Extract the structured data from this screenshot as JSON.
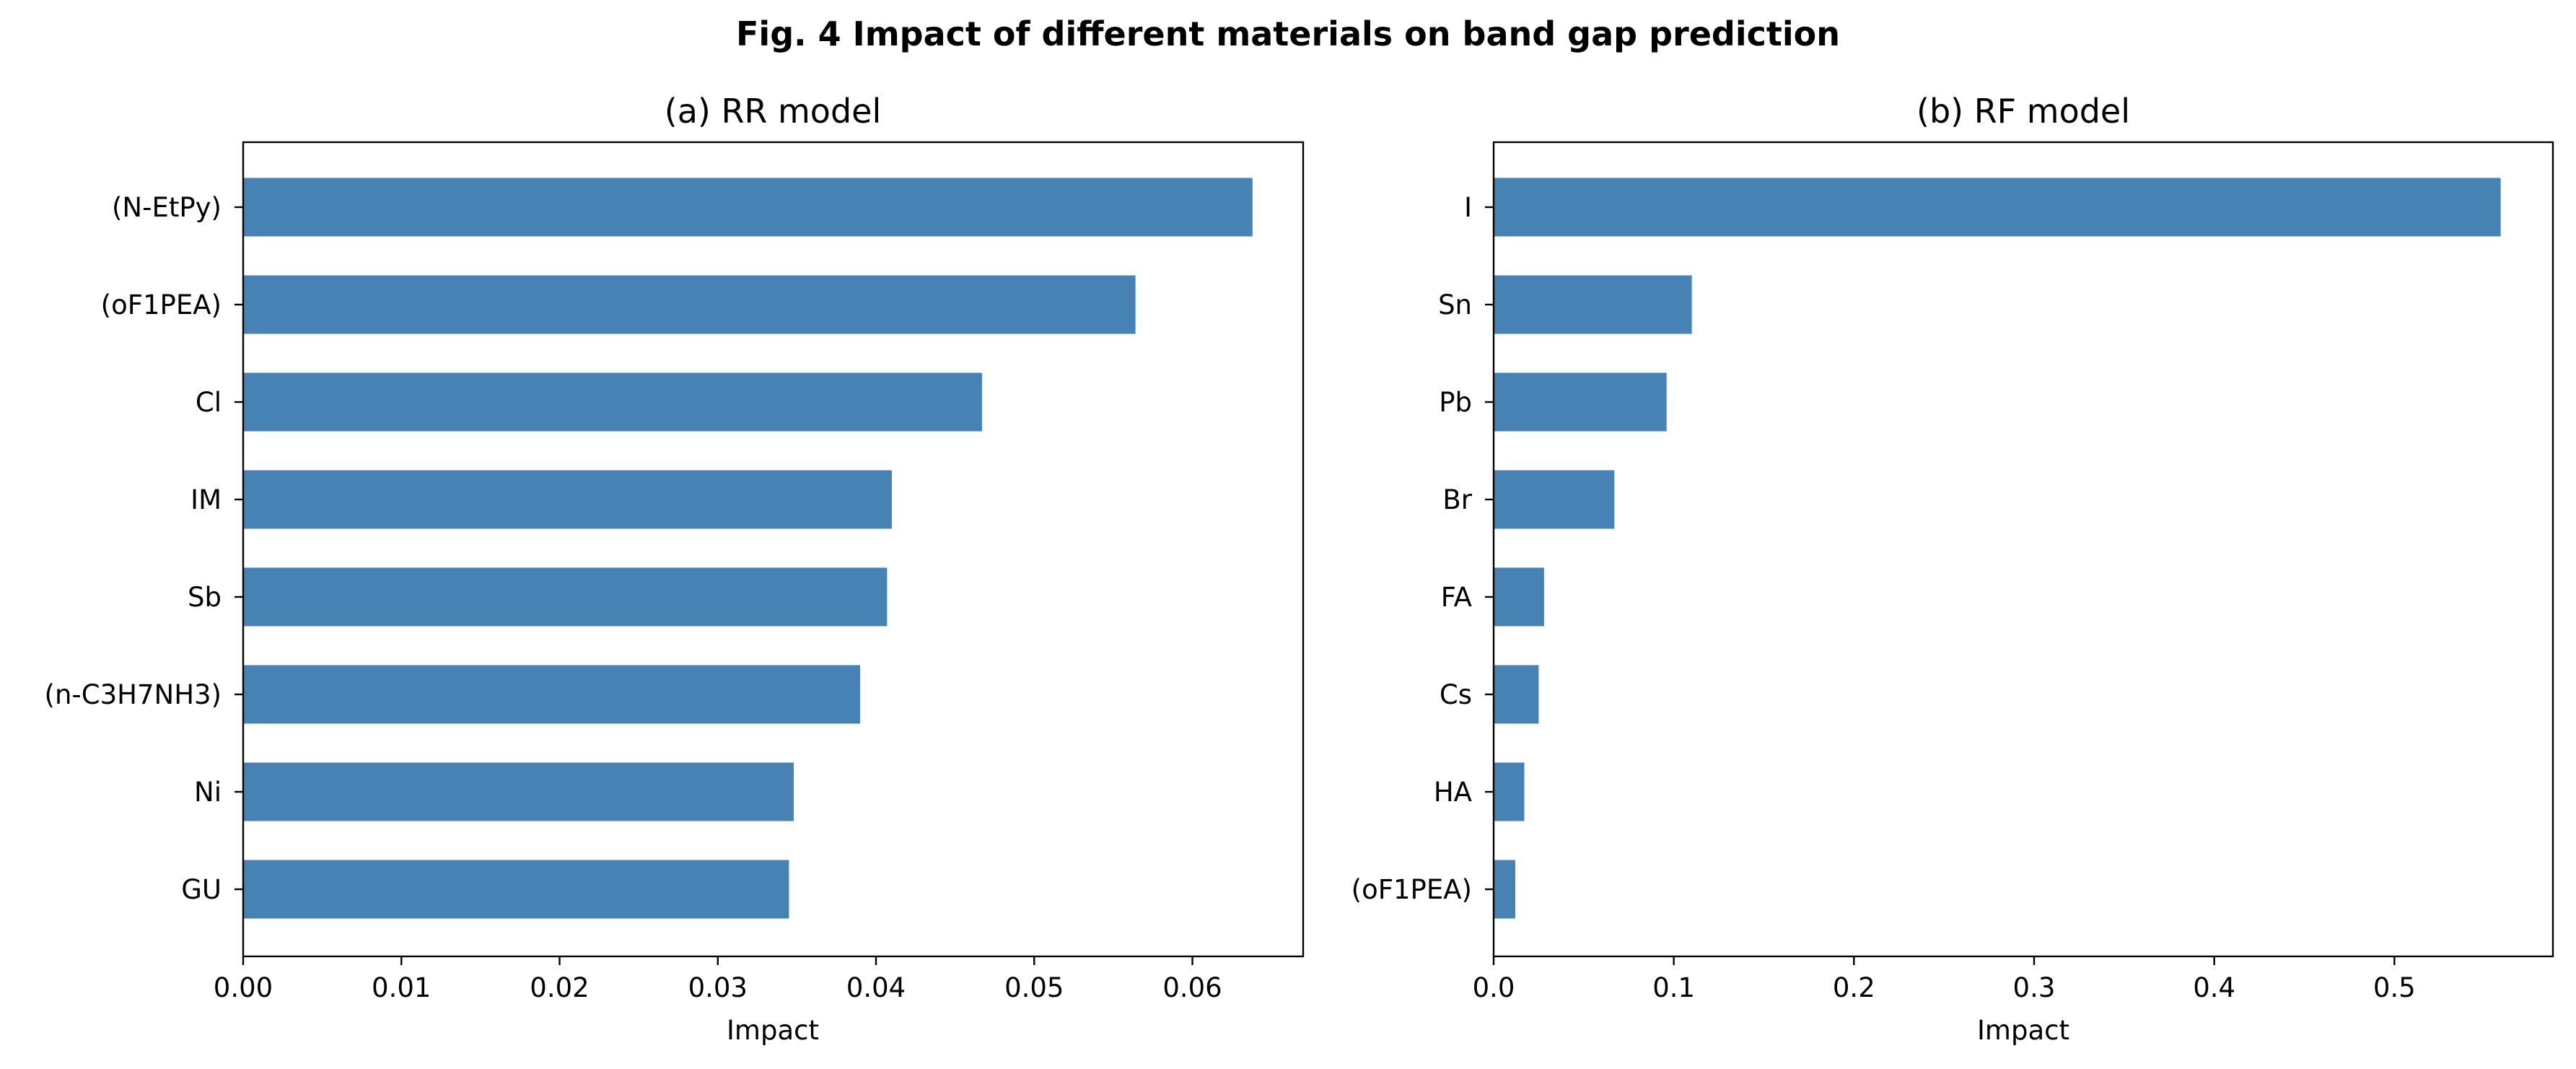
{
  "figure_title": "Fig. 4 Impact of different materials on band gap prediction",
  "colors": {
    "bar": "#4682b4",
    "axis": "#000000",
    "background": "#ffffff"
  },
  "chart_data": [
    {
      "type": "bar",
      "orientation": "horizontal",
      "title": "(a) RR model",
      "xlabel": "Impact",
      "ylabel": "",
      "categories": [
        "(N-EtPy)",
        "(oF1PEA)",
        "Cl",
        "IM",
        "Sb",
        "(n-C3H7NH3)",
        "Ni",
        "GU"
      ],
      "values": [
        0.0638,
        0.0564,
        0.0467,
        0.041,
        0.0407,
        0.039,
        0.0348,
        0.0345
      ],
      "xlim": [
        0,
        0.067
      ],
      "xticks": [
        0,
        0.01,
        0.02,
        0.03,
        0.04,
        0.05,
        0.06
      ],
      "xtick_labels": [
        "0.00",
        "0.01",
        "0.02",
        "0.03",
        "0.04",
        "0.05",
        "0.06"
      ],
      "grid": false,
      "legend": "none"
    },
    {
      "type": "bar",
      "orientation": "horizontal",
      "title": "(b) RF model",
      "xlabel": "Impact",
      "ylabel": "",
      "categories": [
        "I",
        "Sn",
        "Pb",
        "Br",
        "FA",
        "Cs",
        "HA",
        "(oF1PEA)"
      ],
      "values": [
        0.559,
        0.11,
        0.096,
        0.067,
        0.028,
        0.025,
        0.017,
        0.012
      ],
      "xlim": [
        0,
        0.588
      ],
      "xticks": [
        0,
        0.1,
        0.2,
        0.3,
        0.4,
        0.5
      ],
      "xtick_labels": [
        "0.0",
        "0.1",
        "0.2",
        "0.3",
        "0.4",
        "0.5"
      ],
      "grid": false,
      "legend": "none"
    }
  ]
}
